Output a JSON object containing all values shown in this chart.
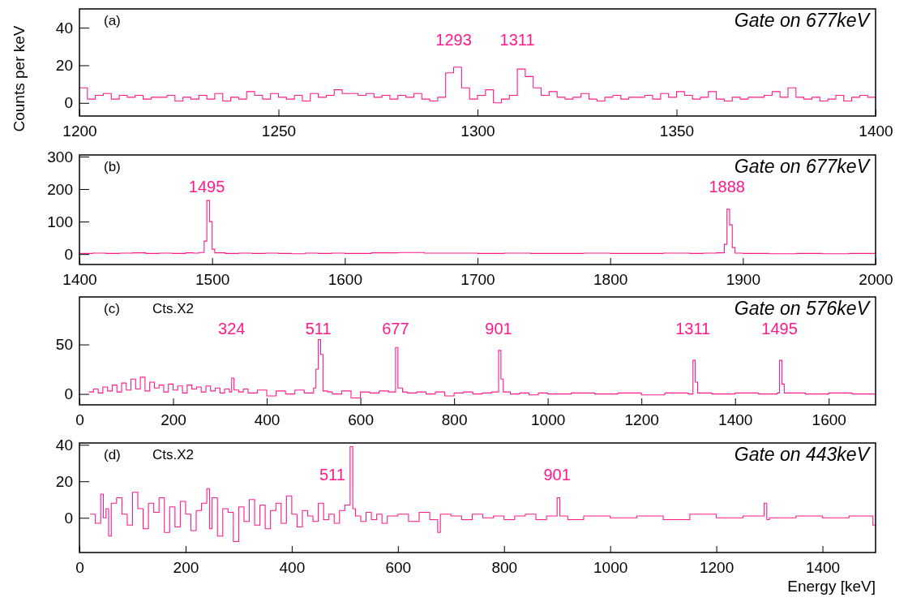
{
  "chart_data": [
    {
      "type": "step",
      "title": "Gate on 677keV",
      "ylabel": "Counts per keV",
      "color": "#ff1a8c",
      "annotations": [
        "(a)",
        {
          "text": "1293",
          "x": 1294,
          "y": 19
        },
        {
          "text": "1311",
          "x": 1310,
          "y": 18
        }
      ],
      "xlim": [
        1200,
        1400
      ],
      "xticks": [
        1200,
        1250,
        1300,
        1350,
        1400
      ],
      "ylim": [
        -7,
        50
      ],
      "yticks": [
        0,
        20,
        40
      ],
      "x": [
        1200,
        1202,
        1204,
        1206,
        1208,
        1210,
        1212,
        1214,
        1216,
        1218,
        1220,
        1222,
        1224,
        1226,
        1228,
        1230,
        1232,
        1234,
        1236,
        1238,
        1240,
        1242,
        1244,
        1246,
        1248,
        1250,
        1252,
        1254,
        1256,
        1258,
        1260,
        1262,
        1264,
        1266,
        1268,
        1270,
        1272,
        1274,
        1276,
        1278,
        1280,
        1282,
        1284,
        1286,
        1288,
        1290,
        1292,
        1294,
        1296,
        1298,
        1300,
        1302,
        1304,
        1306,
        1308,
        1310,
        1312,
        1314,
        1316,
        1318,
        1320,
        1322,
        1324,
        1326,
        1328,
        1330,
        1332,
        1334,
        1336,
        1338,
        1340,
        1342,
        1344,
        1346,
        1348,
        1350,
        1352,
        1354,
        1356,
        1358,
        1360,
        1362,
        1364,
        1366,
        1368,
        1370,
        1372,
        1374,
        1376,
        1378,
        1380,
        1382,
        1384,
        1386,
        1388,
        1390,
        1392,
        1394,
        1396,
        1398,
        1400
      ],
      "values": [
        8,
        2,
        4,
        5,
        2,
        4,
        3,
        4,
        2,
        3,
        3,
        4,
        1,
        3,
        2,
        4,
        2,
        5,
        1,
        3,
        2,
        6,
        4,
        2,
        5,
        3,
        2,
        4,
        1,
        5,
        3,
        4,
        7,
        5,
        5,
        4,
        5,
        3,
        4,
        2,
        4,
        3,
        5,
        2,
        1,
        3,
        16,
        19,
        8,
        2,
        4,
        7,
        0,
        2,
        4,
        18,
        14,
        8,
        4,
        6,
        3,
        2,
        3,
        5,
        2,
        1,
        3,
        4,
        2,
        3,
        3,
        4,
        2,
        5,
        3,
        6,
        4,
        2,
        3,
        6,
        2,
        1,
        3,
        2,
        3,
        3,
        4,
        6,
        3,
        8,
        3,
        2,
        3,
        1,
        2,
        4,
        1,
        3,
        4,
        3,
        3
      ]
    },
    {
      "type": "step",
      "title": "Gate on 677keV",
      "color": "#ff1a8c",
      "annotations": [
        "(b)",
        {
          "text": "1495",
          "x": 1496,
          "y": 165
        },
        {
          "text": "1888",
          "x": 1888,
          "y": 138
        }
      ],
      "xlim": [
        1400,
        2000
      ],
      "xticks": [
        1400,
        1500,
        1600,
        1700,
        1800,
        1900,
        2000
      ],
      "ylim": [
        -32,
        305
      ],
      "yticks": [
        0,
        100,
        200,
        300
      ],
      "x": [
        1400,
        1410,
        1420,
        1430,
        1440,
        1450,
        1460,
        1470,
        1480,
        1486,
        1490,
        1494,
        1496,
        1498,
        1500,
        1502,
        1510,
        1520,
        1530,
        1540,
        1550,
        1560,
        1570,
        1580,
        1590,
        1600,
        1620,
        1640,
        1660,
        1680,
        1700,
        1720,
        1740,
        1760,
        1780,
        1800,
        1820,
        1840,
        1860,
        1870,
        1880,
        1886,
        1888,
        1890,
        1892,
        1894,
        1900,
        1920,
        1940,
        1960,
        1980,
        2000
      ],
      "values": [
        2,
        3,
        2,
        3,
        4,
        2,
        3,
        2,
        4,
        3,
        5,
        40,
        165,
        100,
        15,
        4,
        2,
        3,
        2,
        3,
        2,
        1,
        3,
        2,
        3,
        2,
        4,
        5,
        3,
        3,
        2,
        3,
        2,
        2,
        3,
        2,
        2,
        3,
        2,
        3,
        4,
        30,
        138,
        90,
        20,
        3,
        2,
        1,
        2,
        1,
        2,
        2
      ]
    },
    {
      "type": "step",
      "title": "Gate on 576keV",
      "color": "#ff1a8c",
      "annotations": [
        "(c)",
        "Cts.X2",
        {
          "text": "324",
          "x": 325,
          "y": 16
        },
        {
          "text": "511",
          "x": 510,
          "y": 55
        },
        {
          "text": "677",
          "x": 675,
          "y": 47
        },
        {
          "text": "901",
          "x": 895,
          "y": 44
        },
        {
          "text": "1311",
          "x": 1310,
          "y": 34
        },
        {
          "text": "1495",
          "x": 1495,
          "y": 34
        }
      ],
      "xlim": [
        0,
        1700
      ],
      "xticks": [
        0,
        200,
        400,
        600,
        800,
        1000,
        1200,
        1400,
        1600
      ],
      "ylim": [
        -11,
        98
      ],
      "yticks": [
        0,
        50
      ],
      "x": [
        20,
        30,
        40,
        50,
        60,
        70,
        80,
        90,
        100,
        110,
        120,
        130,
        140,
        150,
        160,
        170,
        180,
        190,
        200,
        210,
        220,
        230,
        240,
        250,
        260,
        270,
        280,
        290,
        300,
        310,
        320,
        325,
        330,
        340,
        350,
        360,
        380,
        400,
        420,
        440,
        460,
        480,
        500,
        505,
        510,
        515,
        520,
        530,
        540,
        560,
        580,
        600,
        620,
        640,
        660,
        675,
        680,
        690,
        700,
        720,
        740,
        760,
        780,
        800,
        820,
        840,
        860,
        880,
        895,
        900,
        905,
        920,
        940,
        960,
        980,
        1000,
        1050,
        1100,
        1150,
        1200,
        1250,
        1300,
        1310,
        1315,
        1320,
        1350,
        1400,
        1450,
        1490,
        1495,
        1500,
        1505,
        1550,
        1600,
        1650,
        1700
      ],
      "values": [
        2,
        5,
        1,
        7,
        3,
        9,
        2,
        11,
        4,
        15,
        5,
        17,
        3,
        12,
        6,
        9,
        2,
        10,
        4,
        8,
        1,
        9,
        5,
        7,
        2,
        8,
        3,
        6,
        1,
        5,
        2,
        16,
        4,
        2,
        5,
        1,
        4,
        -2,
        3,
        0,
        4,
        1,
        6,
        25,
        55,
        40,
        3,
        2,
        0,
        3,
        -4,
        2,
        1,
        3,
        2,
        47,
        6,
        2,
        1,
        2,
        0,
        2,
        -2,
        1,
        2,
        0,
        1,
        2,
        44,
        15,
        2,
        0,
        1,
        -1,
        1,
        0,
        1,
        0,
        1,
        -1,
        1,
        0,
        34,
        12,
        1,
        0,
        1,
        0,
        1,
        34,
        10,
        1,
        0,
        1,
        0,
        0
      ]
    },
    {
      "type": "step",
      "title": "Gate on 443keV",
      "xlabel": "Energy [keV]",
      "color": "#ff1a8c",
      "annotations": [
        "(d)",
        "Cts.X2",
        {
          "text": "511",
          "x": 510,
          "y": 39
        },
        {
          "text": "901",
          "x": 900,
          "y": 11
        }
      ],
      "xlim": [
        0,
        1500
      ],
      "xticks": [
        0,
        200,
        400,
        600,
        800,
        1000,
        1200,
        1400
      ],
      "ylim": [
        -19,
        41
      ],
      "yticks": [
        0,
        20,
        40
      ],
      "x": [
        20,
        30,
        40,
        45,
        50,
        55,
        60,
        70,
        80,
        90,
        100,
        110,
        120,
        130,
        140,
        150,
        160,
        170,
        180,
        190,
        200,
        210,
        220,
        230,
        240,
        245,
        250,
        260,
        270,
        280,
        290,
        300,
        310,
        320,
        330,
        340,
        350,
        360,
        370,
        380,
        390,
        400,
        410,
        420,
        430,
        440,
        450,
        460,
        470,
        480,
        490,
        500,
        510,
        515,
        520,
        530,
        540,
        550,
        560,
        570,
        580,
        600,
        620,
        640,
        660,
        675,
        680,
        700,
        720,
        740,
        760,
        780,
        800,
        820,
        840,
        860,
        880,
        900,
        905,
        920,
        950,
        1000,
        1050,
        1100,
        1150,
        1200,
        1250,
        1290,
        1295,
        1300,
        1350,
        1400,
        1450,
        1495,
        1500
      ],
      "values": [
        2,
        -3,
        13,
        0,
        5,
        -10,
        8,
        11,
        2,
        -4,
        14,
        5,
        -6,
        8,
        3,
        11,
        -8,
        6,
        -5,
        9,
        2,
        -7,
        4,
        8,
        16,
        -6,
        11,
        -10,
        5,
        3,
        -13,
        6,
        -2,
        10,
        -4,
        7,
        -6,
        4,
        8,
        -3,
        12,
        2,
        -5,
        4,
        1,
        -2,
        8,
        -1,
        2,
        -3,
        4,
        7,
        39,
        5,
        1,
        -2,
        3,
        -1,
        2,
        -3,
        1,
        2,
        -2,
        3,
        -1,
        -8,
        2,
        1,
        -1,
        2,
        0,
        1,
        -1,
        1,
        2,
        -1,
        1,
        11,
        1,
        -1,
        1,
        0,
        1,
        -1,
        2,
        0,
        1,
        8,
        -1,
        0,
        1,
        0,
        1,
        -4,
        -4
      ]
    }
  ]
}
